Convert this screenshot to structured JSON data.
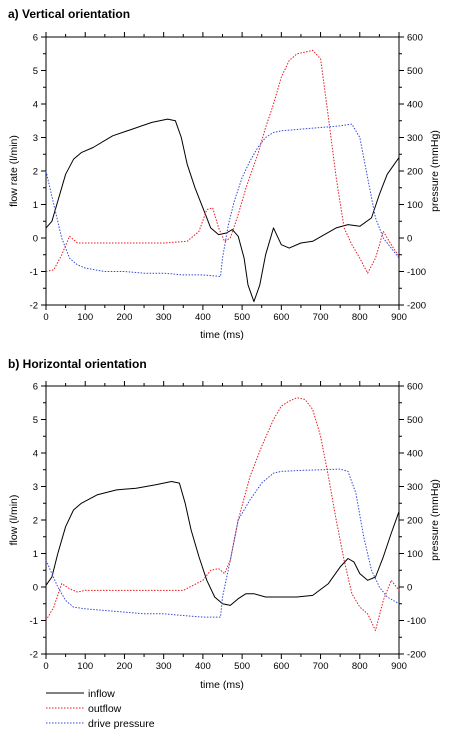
{
  "chart_data": [
    {
      "type": "line",
      "title": "a) Vertical orientation",
      "xlabel": "time (ms)",
      "ylabel": "flow rate (l/min)",
      "y2label": "pressure (mmHg)",
      "xlim": [
        0,
        900
      ],
      "ylim": [
        -2,
        6
      ],
      "y2lim": [
        -200,
        600
      ],
      "xticks": [
        "0",
        "100",
        "200",
        "300",
        "400",
        "500",
        "600",
        "700",
        "800",
        "900"
      ],
      "yticks": [
        "-2",
        "-1",
        "0",
        "1",
        "2",
        "3",
        "4",
        "5",
        "6"
      ],
      "y2ticks": [
        "-200",
        "-100",
        "0",
        "100",
        "200",
        "300",
        "400",
        "500",
        "600"
      ],
      "grid": false,
      "series": [
        {
          "name": "inflow",
          "axis": "left",
          "color": "#000000",
          "dash": "solid",
          "x": [
            0,
            15,
            30,
            50,
            70,
            90,
            120,
            170,
            220,
            270,
            310,
            330,
            345,
            360,
            380,
            400,
            420,
            440,
            460,
            475,
            490,
            505,
            515,
            530,
            545,
            560,
            580,
            600,
            620,
            650,
            680,
            710,
            740,
            770,
            800,
            830,
            850,
            870,
            900
          ],
          "y": [
            0.3,
            0.5,
            1.1,
            1.9,
            2.35,
            2.55,
            2.7,
            3.05,
            3.25,
            3.45,
            3.55,
            3.5,
            3.0,
            2.2,
            1.5,
            0.9,
            0.3,
            0.1,
            0.15,
            0.25,
            0.05,
            -0.6,
            -1.4,
            -1.9,
            -1.4,
            -0.5,
            0.3,
            -0.2,
            -0.3,
            -0.15,
            -0.1,
            0.1,
            0.3,
            0.4,
            0.35,
            0.6,
            1.3,
            1.9,
            2.4
          ]
        },
        {
          "name": "outflow",
          "axis": "right",
          "color": "#e8191e",
          "dash": "dotted",
          "x": [
            0,
            20,
            40,
            60,
            80,
            100,
            150,
            200,
            250,
            300,
            360,
            390,
            410,
            425,
            440,
            455,
            470,
            490,
            510,
            540,
            560,
            580,
            600,
            620,
            640,
            660,
            680,
            700,
            720,
            740,
            760,
            780,
            800,
            820,
            840,
            860,
            880,
            900
          ],
          "y": [
            -100,
            -95,
            -50,
            5,
            -15,
            -15,
            -15,
            -15,
            -15,
            -15,
            -10,
            20,
            85,
            90,
            30,
            -10,
            0,
            70,
            150,
            250,
            330,
            400,
            480,
            530,
            550,
            555,
            560,
            535,
            360,
            180,
            30,
            -20,
            -60,
            -105,
            -60,
            20,
            -20,
            -55
          ]
        },
        {
          "name": "drive pressure",
          "axis": "right",
          "color": "#3349d6",
          "dash": "dotted",
          "x": [
            0,
            20,
            40,
            60,
            80,
            100,
            150,
            200,
            250,
            300,
            350,
            400,
            445,
            450,
            465,
            480,
            500,
            520,
            540,
            560,
            580,
            600,
            650,
            700,
            750,
            780,
            800,
            820,
            840,
            860,
            880,
            900
          ],
          "y": [
            200,
            100,
            0,
            -60,
            -80,
            -90,
            -100,
            -100,
            -105,
            -105,
            -110,
            -110,
            -115,
            -60,
            40,
            110,
            180,
            230,
            270,
            300,
            315,
            320,
            325,
            330,
            335,
            340,
            300,
            180,
            60,
            0,
            -30,
            -60
          ]
        }
      ]
    },
    {
      "type": "line",
      "title": "b) Horizontal orientation",
      "xlabel": "time (ms)",
      "ylabel": "flow (l/min)",
      "y2label": "pressure (mmHg)",
      "xlim": [
        0,
        900
      ],
      "ylim": [
        -2,
        6
      ],
      "y2lim": [
        -200,
        600
      ],
      "xticks": [
        "0",
        "100",
        "200",
        "300",
        "400",
        "500",
        "600",
        "700",
        "800",
        "900"
      ],
      "yticks": [
        "-2",
        "-1",
        "0",
        "1",
        "2",
        "3",
        "4",
        "5",
        "6"
      ],
      "y2ticks": [
        "-200",
        "-100",
        "0",
        "100",
        "200",
        "300",
        "400",
        "500",
        "600"
      ],
      "grid": false,
      "series": [
        {
          "name": "inflow",
          "axis": "left",
          "color": "#000000",
          "dash": "solid",
          "x": [
            0,
            15,
            30,
            50,
            70,
            90,
            130,
            180,
            230,
            280,
            320,
            340,
            355,
            370,
            390,
            410,
            430,
            450,
            470,
            490,
            510,
            530,
            560,
            600,
            640,
            680,
            720,
            750,
            770,
            785,
            800,
            820,
            840,
            860,
            880,
            900
          ],
          "y": [
            0.05,
            0.3,
            1.0,
            1.8,
            2.3,
            2.5,
            2.75,
            2.9,
            2.95,
            3.05,
            3.15,
            3.1,
            2.5,
            1.7,
            0.9,
            0.2,
            -0.3,
            -0.5,
            -0.55,
            -0.35,
            -0.2,
            -0.2,
            -0.3,
            -0.3,
            -0.3,
            -0.25,
            0.1,
            0.6,
            0.85,
            0.75,
            0.4,
            0.2,
            0.3,
            0.9,
            1.6,
            2.25
          ]
        },
        {
          "name": "outflow",
          "axis": "right",
          "color": "#e8191e",
          "dash": "dotted",
          "x": [
            0,
            20,
            40,
            60,
            80,
            100,
            150,
            200,
            250,
            300,
            350,
            400,
            420,
            440,
            455,
            470,
            490,
            520,
            550,
            580,
            600,
            620,
            640,
            660,
            680,
            700,
            720,
            740,
            760,
            780,
            800,
            820,
            840,
            860,
            880,
            900
          ],
          "y": [
            -100,
            -60,
            10,
            -5,
            -15,
            -10,
            -10,
            -10,
            -10,
            -10,
            -10,
            20,
            50,
            55,
            40,
            80,
            200,
            330,
            420,
            500,
            540,
            555,
            565,
            560,
            530,
            450,
            330,
            200,
            80,
            -20,
            -60,
            -80,
            -130,
            -40,
            20,
            -10
          ]
        },
        {
          "name": "drive pressure",
          "axis": "right",
          "color": "#3349d6",
          "dash": "dotted",
          "x": [
            0,
            15,
            30,
            50,
            70,
            100,
            150,
            200,
            250,
            300,
            350,
            400,
            445,
            450,
            470,
            490,
            520,
            550,
            580,
            600,
            650,
            700,
            750,
            770,
            790,
            810,
            830,
            850,
            870,
            900
          ],
          "y": [
            80,
            40,
            0,
            -40,
            -60,
            -65,
            -70,
            -75,
            -80,
            -80,
            -85,
            -90,
            -90,
            -30,
            80,
            200,
            260,
            310,
            340,
            345,
            348,
            350,
            352,
            345,
            280,
            150,
            50,
            0,
            -30,
            -50
          ]
        }
      ]
    }
  ],
  "legend": {
    "items": [
      {
        "label": "inflow",
        "color": "#000000",
        "dash": "solid"
      },
      {
        "label": "outflow",
        "color": "#e8191e",
        "dash": "dotted"
      },
      {
        "label": "drive pressure",
        "color": "#3349d6",
        "dash": "dotted"
      }
    ]
  }
}
